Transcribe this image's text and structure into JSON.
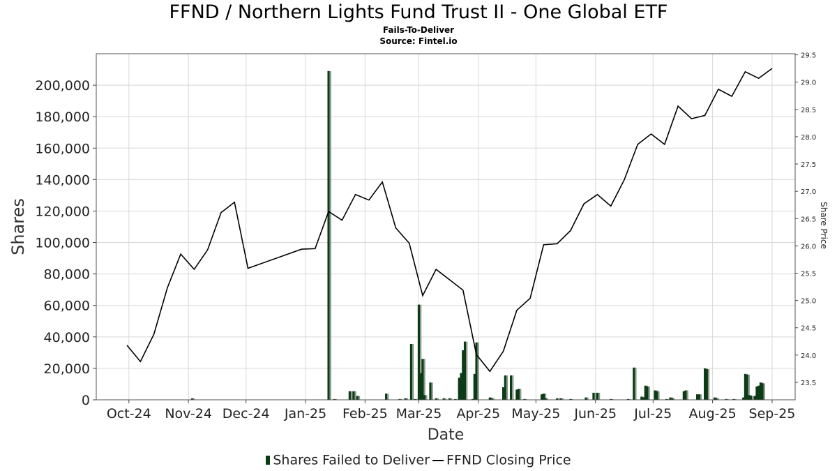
{
  "chart_data": {
    "type": "bar+line",
    "title": "FFND / Northern Lights Fund Trust II - One Global ETF",
    "subtitle": "Fails-To-Deliver",
    "source": "Source: Fintel.io",
    "xlabel": "Date",
    "ylabel": "Shares",
    "y2label": "Share Price",
    "x_ticks": [
      "Oct-24",
      "Nov-24",
      "Dec-24",
      "Jan-25",
      "Feb-25",
      "Mar-25",
      "Apr-25",
      "May-25",
      "Jun-25",
      "Jul-25",
      "Aug-25",
      "Sep-25"
    ],
    "y_ticks": [
      "0",
      "20,000",
      "40,000",
      "60,000",
      "80,000",
      "100,000",
      "120,000",
      "140,000",
      "160,000",
      "180,000",
      "200,000"
    ],
    "y2_ticks": [
      "23.5",
      "24.0",
      "24.5",
      "25.0",
      "25.5",
      "26.0",
      "26.5",
      "27.0",
      "27.5",
      "28.0",
      "28.5",
      "29.0",
      "29.5"
    ],
    "xlim": [
      "2024-09-14",
      "2025-09-13"
    ],
    "ylim": [
      0,
      220000
    ],
    "y2lim": [
      23.18,
      29.52
    ],
    "grid": true,
    "legend_position": "bottom",
    "series": [
      {
        "name": "Shares Failed to Deliver",
        "type": "bar",
        "color": "#0c3b16",
        "points": [
          {
            "date": "2024-11-03",
            "value": 1000
          },
          {
            "date": "2025-01-13",
            "value": 209000
          },
          {
            "date": "2025-01-16",
            "value": 500
          },
          {
            "date": "2025-01-24",
            "value": 5500
          },
          {
            "date": "2025-01-26",
            "value": 5500
          },
          {
            "date": "2025-01-28",
            "value": 2500
          },
          {
            "date": "2025-02-12",
            "value": 4000
          },
          {
            "date": "2025-02-19",
            "value": 500
          },
          {
            "date": "2025-02-22",
            "value": 1000
          },
          {
            "date": "2025-02-25",
            "value": 35500
          },
          {
            "date": "2025-02-27",
            "value": 500
          },
          {
            "date": "2025-03-01",
            "value": 60500
          },
          {
            "date": "2025-03-02",
            "value": 17000
          },
          {
            "date": "2025-03-03",
            "value": 26000
          },
          {
            "date": "2025-03-04",
            "value": 3000
          },
          {
            "date": "2025-03-07",
            "value": 11000
          },
          {
            "date": "2025-03-10",
            "value": 1000
          },
          {
            "date": "2025-03-14",
            "value": 1000
          },
          {
            "date": "2025-03-17",
            "value": 1000
          },
          {
            "date": "2025-03-20",
            "value": 500
          },
          {
            "date": "2025-03-22",
            "value": 14000
          },
          {
            "date": "2025-03-23",
            "value": 17000
          },
          {
            "date": "2025-03-24",
            "value": 31500
          },
          {
            "date": "2025-03-25",
            "value": 37000
          },
          {
            "date": "2025-03-29",
            "value": 500
          },
          {
            "date": "2025-03-30",
            "value": 16500
          },
          {
            "date": "2025-03-31",
            "value": 36500
          },
          {
            "date": "2025-04-07",
            "value": 1500
          },
          {
            "date": "2025-04-08",
            "value": 1000
          },
          {
            "date": "2025-04-14",
            "value": 8000
          },
          {
            "date": "2025-04-15",
            "value": 15500
          },
          {
            "date": "2025-04-18",
            "value": 15500
          },
          {
            "date": "2025-04-21",
            "value": 6500
          },
          {
            "date": "2025-04-22",
            "value": 7000
          },
          {
            "date": "2025-04-25",
            "value": 500
          },
          {
            "date": "2025-05-04",
            "value": 3500
          },
          {
            "date": "2025-05-05",
            "value": 4000
          },
          {
            "date": "2025-05-06",
            "value": 1000
          },
          {
            "date": "2025-05-12",
            "value": 1000
          },
          {
            "date": "2025-05-14",
            "value": 1000
          },
          {
            "date": "2025-05-19",
            "value": 500
          },
          {
            "date": "2025-05-27",
            "value": 1500
          },
          {
            "date": "2025-05-31",
            "value": 4500
          },
          {
            "date": "2025-06-02",
            "value": 4500
          },
          {
            "date": "2025-06-09",
            "value": 500
          },
          {
            "date": "2025-06-18",
            "value": 500
          },
          {
            "date": "2025-06-21",
            "value": 20500
          },
          {
            "date": "2025-06-25",
            "value": 2000
          },
          {
            "date": "2025-06-26",
            "value": 1500
          },
          {
            "date": "2025-06-27",
            "value": 9000
          },
          {
            "date": "2025-06-28",
            "value": 8500
          },
          {
            "date": "2025-07-02",
            "value": 6000
          },
          {
            "date": "2025-07-03",
            "value": 5500
          },
          {
            "date": "2025-07-08",
            "value": 500
          },
          {
            "date": "2025-07-10",
            "value": 1500
          },
          {
            "date": "2025-07-11",
            "value": 1000
          },
          {
            "date": "2025-07-17",
            "value": 5500
          },
          {
            "date": "2025-07-18",
            "value": 6000
          },
          {
            "date": "2025-07-24",
            "value": 3500
          },
          {
            "date": "2025-07-25",
            "value": 3500
          },
          {
            "date": "2025-07-28",
            "value": 20000
          },
          {
            "date": "2025-07-29",
            "value": 19500
          },
          {
            "date": "2025-08-02",
            "value": 1500
          },
          {
            "date": "2025-08-03",
            "value": 1000
          },
          {
            "date": "2025-08-08",
            "value": 500
          },
          {
            "date": "2025-08-12",
            "value": 500
          },
          {
            "date": "2025-08-17",
            "value": 1500
          },
          {
            "date": "2025-08-18",
            "value": 16500
          },
          {
            "date": "2025-08-19",
            "value": 16000
          },
          {
            "date": "2025-08-20",
            "value": 3000
          },
          {
            "date": "2025-08-21",
            "value": 2500
          },
          {
            "date": "2025-08-23",
            "value": 2500
          },
          {
            "date": "2025-08-24",
            "value": 8500
          },
          {
            "date": "2025-08-25",
            "value": 9000
          },
          {
            "date": "2025-08-26",
            "value": 11000
          },
          {
            "date": "2025-08-27",
            "value": 10500
          }
        ]
      },
      {
        "name": "FFND Closing Price",
        "type": "line",
        "axis": "right",
        "color": "#000000",
        "points": [
          {
            "date": "2024-09-30",
            "value": 24.18
          },
          {
            "date": "2024-10-07",
            "value": 23.88
          },
          {
            "date": "2024-10-14",
            "value": 24.38
          },
          {
            "date": "2024-10-21",
            "value": 25.23
          },
          {
            "date": "2024-10-28",
            "value": 25.85
          },
          {
            "date": "2024-11-04",
            "value": 25.57
          },
          {
            "date": "2024-11-11",
            "value": 25.93
          },
          {
            "date": "2024-11-18",
            "value": 26.61
          },
          {
            "date": "2024-11-25",
            "value": 26.8
          },
          {
            "date": "2024-12-02",
            "value": 25.59
          },
          {
            "date": "2024-12-30",
            "value": 25.94
          },
          {
            "date": "2025-01-06",
            "value": 25.95
          },
          {
            "date": "2025-01-13",
            "value": 26.63
          },
          {
            "date": "2025-01-20",
            "value": 26.47
          },
          {
            "date": "2025-01-27",
            "value": 26.94
          },
          {
            "date": "2025-02-03",
            "value": 26.84
          },
          {
            "date": "2025-02-10",
            "value": 27.17
          },
          {
            "date": "2025-02-17",
            "value": 26.33
          },
          {
            "date": "2025-02-24",
            "value": 26.05
          },
          {
            "date": "2025-03-03",
            "value": 25.09
          },
          {
            "date": "2025-03-10",
            "value": 25.57
          },
          {
            "date": "2025-03-17",
            "value": 25.38
          },
          {
            "date": "2025-03-24",
            "value": 25.19
          },
          {
            "date": "2025-03-31",
            "value": 24.01
          },
          {
            "date": "2025-04-07",
            "value": 23.7
          },
          {
            "date": "2025-04-14",
            "value": 24.07
          },
          {
            "date": "2025-04-21",
            "value": 24.82
          },
          {
            "date": "2025-04-28",
            "value": 25.04
          },
          {
            "date": "2025-05-05",
            "value": 26.02
          },
          {
            "date": "2025-05-12",
            "value": 26.04
          },
          {
            "date": "2025-05-19",
            "value": 26.28
          },
          {
            "date": "2025-05-26",
            "value": 26.77
          },
          {
            "date": "2025-06-02",
            "value": 26.94
          },
          {
            "date": "2025-06-09",
            "value": 26.73
          },
          {
            "date": "2025-06-16",
            "value": 27.21
          },
          {
            "date": "2025-06-23",
            "value": 27.86
          },
          {
            "date": "2025-06-30",
            "value": 28.05
          },
          {
            "date": "2025-07-07",
            "value": 27.86
          },
          {
            "date": "2025-07-14",
            "value": 28.56
          },
          {
            "date": "2025-07-21",
            "value": 28.33
          },
          {
            "date": "2025-07-28",
            "value": 28.39
          },
          {
            "date": "2025-08-04",
            "value": 28.87
          },
          {
            "date": "2025-08-11",
            "value": 28.74
          },
          {
            "date": "2025-08-18",
            "value": 29.19
          },
          {
            "date": "2025-08-25",
            "value": 29.07
          },
          {
            "date": "2025-09-01",
            "value": 29.25
          }
        ]
      }
    ]
  }
}
